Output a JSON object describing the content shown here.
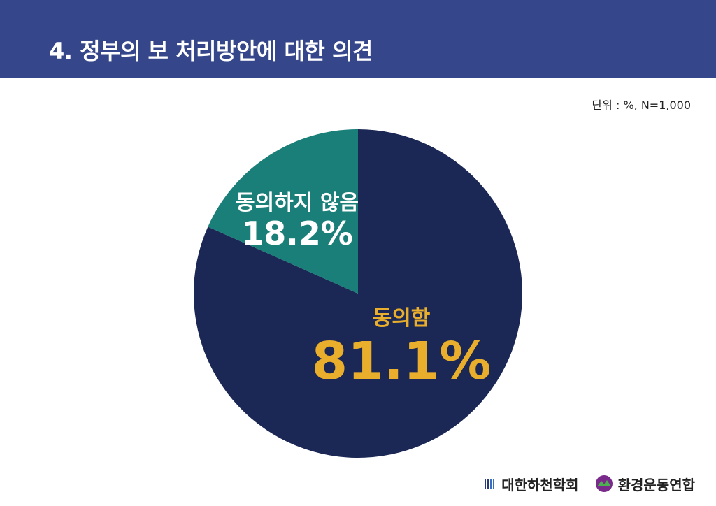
{
  "header": {
    "title": "4. 정부의 보 처리방안에 대한 의견"
  },
  "unit_note": "단위 : %, N=1,000",
  "chart_data": {
    "type": "pie",
    "title": "4. 정부의 보 처리방안에 대한 의견",
    "start_angle_deg": 0,
    "direction": "clockwise",
    "slices": [
      {
        "label": "동의함",
        "value": 81.1,
        "value_label": "81.1%",
        "color": "#1b2754",
        "label_color": "#e8ae2c"
      },
      {
        "label": "동의하지 않음",
        "value": 18.2,
        "value_label": "18.2%",
        "color": "#1a7f78",
        "label_color": "#ffffff"
      }
    ]
  },
  "footer": {
    "logos": [
      {
        "name": "대한하천학회",
        "icon": "river-society-logo"
      },
      {
        "name": "환경운동연합",
        "icon": "kfem-logo"
      }
    ]
  }
}
